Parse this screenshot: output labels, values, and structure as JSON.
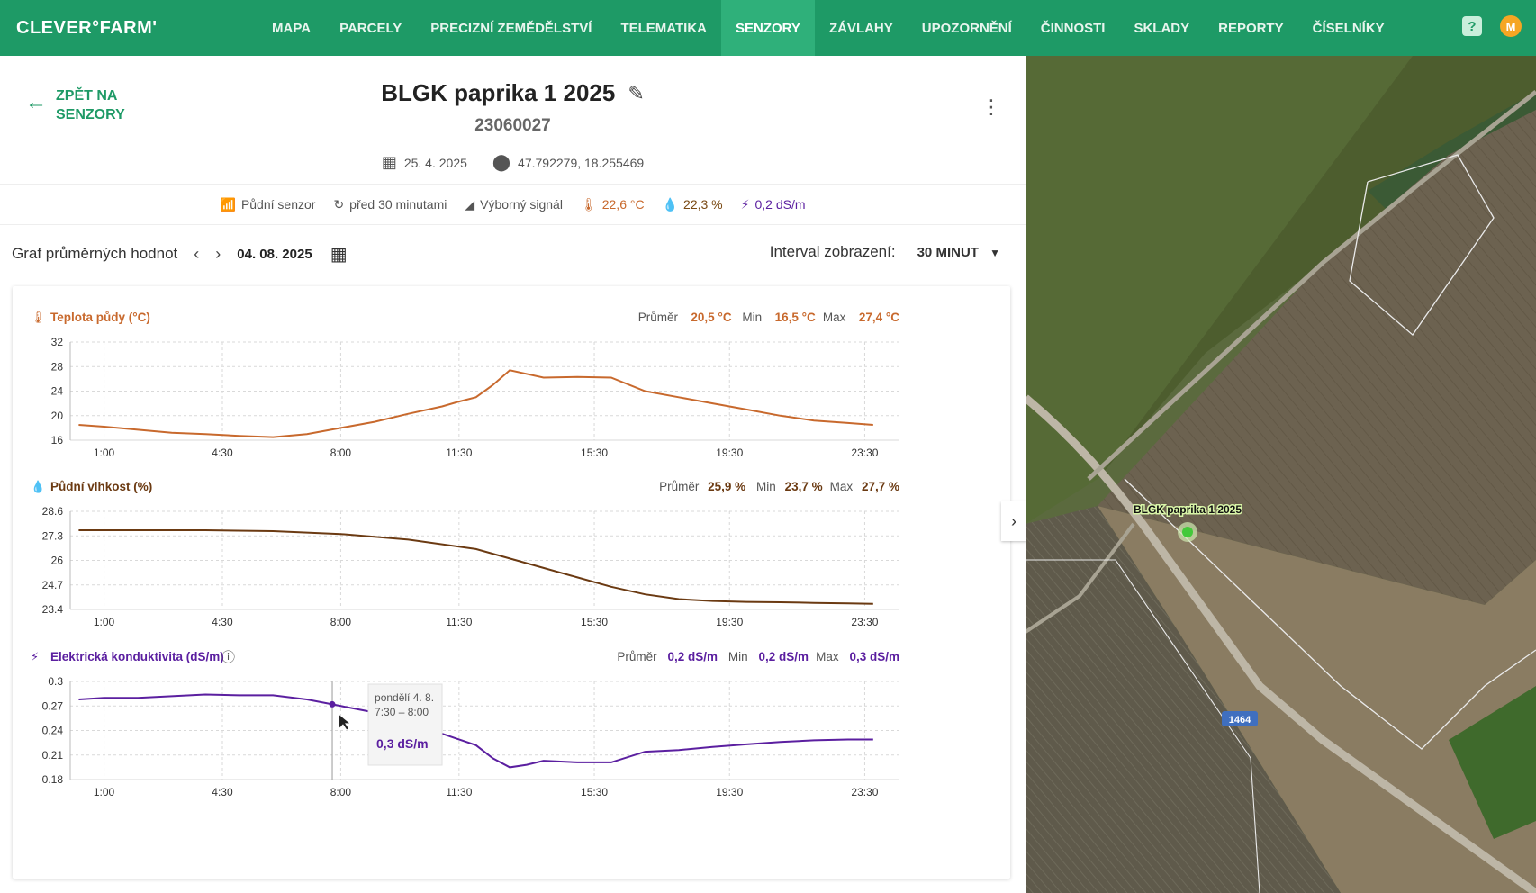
{
  "app": {
    "logo": "CLEVER°FARM'",
    "nav": [
      "MAPA",
      "PARCELY",
      "PRECIZNÍ ZEMĚDĚLSTVÍ",
      "TELEMATIKA",
      "SENZORY",
      "ZÁVLAHY",
      "UPOZORNĚNÍ",
      "ČINNOSTI",
      "SKLADY",
      "REPORTY",
      "ČÍSELNÍKY"
    ],
    "active_nav": "SENZORY",
    "help_label": "?",
    "avatar_initial": "M"
  },
  "sensor": {
    "back_label_1": "ZPĚT NA",
    "back_label_2": "SENZORY",
    "name": "BLGK paprika 1 2025",
    "id": "23060027",
    "date": "25. 4. 2025",
    "coords": "47.792279, 18.255469",
    "status": {
      "type": "Půdní senzor",
      "updated": "před 30 minutami",
      "signal": "Výborný signál",
      "temp": "22,6 °C",
      "moisture": "22,3 %",
      "conductivity": "0,2 dS/m"
    }
  },
  "toolbar": {
    "title": "Graf průměrných hodnot",
    "date": "04. 08. 2025",
    "interval_label": "Interval zobrazení:",
    "interval_value": "30 MINUT"
  },
  "stat_labels": {
    "avg": "Průměr",
    "min": "Min",
    "max": "Max"
  },
  "chart_data": [
    {
      "type": "line",
      "title": "Teplota půdy (°C)",
      "color": "#c8692d",
      "stats": {
        "avg": "20,5 °C",
        "min": "16,5 °C",
        "max": "27,4 °C"
      },
      "ylim": [
        16,
        32
      ],
      "yticks": [
        "32",
        "28",
        "24",
        "20",
        "16"
      ],
      "ytick_values": [
        32,
        28,
        24,
        20,
        16
      ],
      "xticks": [
        "1:00",
        "4:30",
        "8:00",
        "11:30",
        "15:30",
        "19:30",
        "23:30"
      ],
      "xtick_values": [
        1.0,
        4.5,
        8.0,
        11.5,
        15.5,
        19.5,
        23.5
      ],
      "x": [
        0.25,
        1,
        2,
        3,
        4,
        5,
        6,
        7,
        8,
        9,
        10,
        11,
        11.5,
        12,
        12.5,
        13,
        14,
        15,
        16,
        17,
        18,
        19,
        20,
        21,
        22,
        23,
        23.75
      ],
      "values": [
        18.5,
        18.2,
        17.7,
        17.2,
        17.0,
        16.7,
        16.5,
        17.0,
        18.0,
        19.0,
        20.3,
        21.5,
        22.3,
        23.0,
        25.0,
        27.4,
        26.2,
        26.3,
        26.2,
        24.0,
        23.0,
        22.0,
        21.0,
        20.0,
        19.2,
        18.8,
        18.5
      ]
    },
    {
      "type": "line",
      "title": "Půdní vlhkost (%)",
      "color": "#6b3a12",
      "stats": {
        "avg": "25,9 %",
        "min": "23,7 %",
        "max": "27,7 %"
      },
      "ylim": [
        23.4,
        28.6
      ],
      "yticks": [
        "28.6",
        "27.3",
        "26",
        "24.7",
        "23.4"
      ],
      "ytick_values": [
        28.6,
        27.3,
        26.0,
        24.7,
        23.4
      ],
      "xticks": [
        "1:00",
        "4:30",
        "8:00",
        "11:30",
        "15:30",
        "19:30",
        "23:30"
      ],
      "xtick_values": [
        1.0,
        4.5,
        8.0,
        11.5,
        15.5,
        19.5,
        23.5
      ],
      "x": [
        0.25,
        2,
        4,
        6,
        8,
        10,
        12,
        13,
        14,
        15,
        16,
        17,
        18,
        19,
        20,
        21,
        22,
        23,
        23.75
      ],
      "values": [
        27.6,
        27.6,
        27.6,
        27.55,
        27.4,
        27.1,
        26.6,
        26.1,
        25.6,
        25.1,
        24.6,
        24.2,
        23.95,
        23.85,
        23.8,
        23.78,
        23.75,
        23.72,
        23.7
      ]
    },
    {
      "type": "line",
      "title": "Elektrická konduktivita (dS/m)",
      "color": "#5b1fa0",
      "stats": {
        "avg": "0,2 dS/m",
        "min": "0,2 dS/m",
        "max": "0,3 dS/m"
      },
      "ylim": [
        0.18,
        0.3
      ],
      "yticks": [
        "0.3",
        "0.27",
        "0.24",
        "0.21",
        "0.18"
      ],
      "ytick_values": [
        0.3,
        0.27,
        0.24,
        0.21,
        0.18
      ],
      "xticks": [
        "1:00",
        "4:30",
        "8:00",
        "11:30",
        "15:30",
        "19:30",
        "23:30"
      ],
      "xtick_values": [
        1.0,
        4.5,
        8.0,
        11.5,
        15.5,
        19.5,
        23.5
      ],
      "x": [
        0.25,
        1,
        2,
        3,
        4,
        5,
        6,
        7,
        7.75,
        8.5,
        9,
        10,
        11,
        12,
        12.5,
        13,
        13.5,
        14,
        15,
        16,
        17,
        18,
        19,
        20,
        21,
        22,
        23,
        23.75
      ],
      "values": [
        0.278,
        0.28,
        0.28,
        0.282,
        0.284,
        0.283,
        0.283,
        0.278,
        0.272,
        0.266,
        0.262,
        0.248,
        0.236,
        0.222,
        0.206,
        0.195,
        0.198,
        0.203,
        0.201,
        0.201,
        0.214,
        0.216,
        0.22,
        0.223,
        0.226,
        0.228,
        0.229,
        0.229
      ],
      "tooltip": {
        "line1": "pondělí 4. 8.",
        "line2": "7:30 – 8:00",
        "value": "0,3 dS/m",
        "x": 7.75,
        "y": 0.272
      }
    }
  ],
  "map": {
    "marker_label": "BLGK paprika 1 2025",
    "road_label": "1464"
  }
}
